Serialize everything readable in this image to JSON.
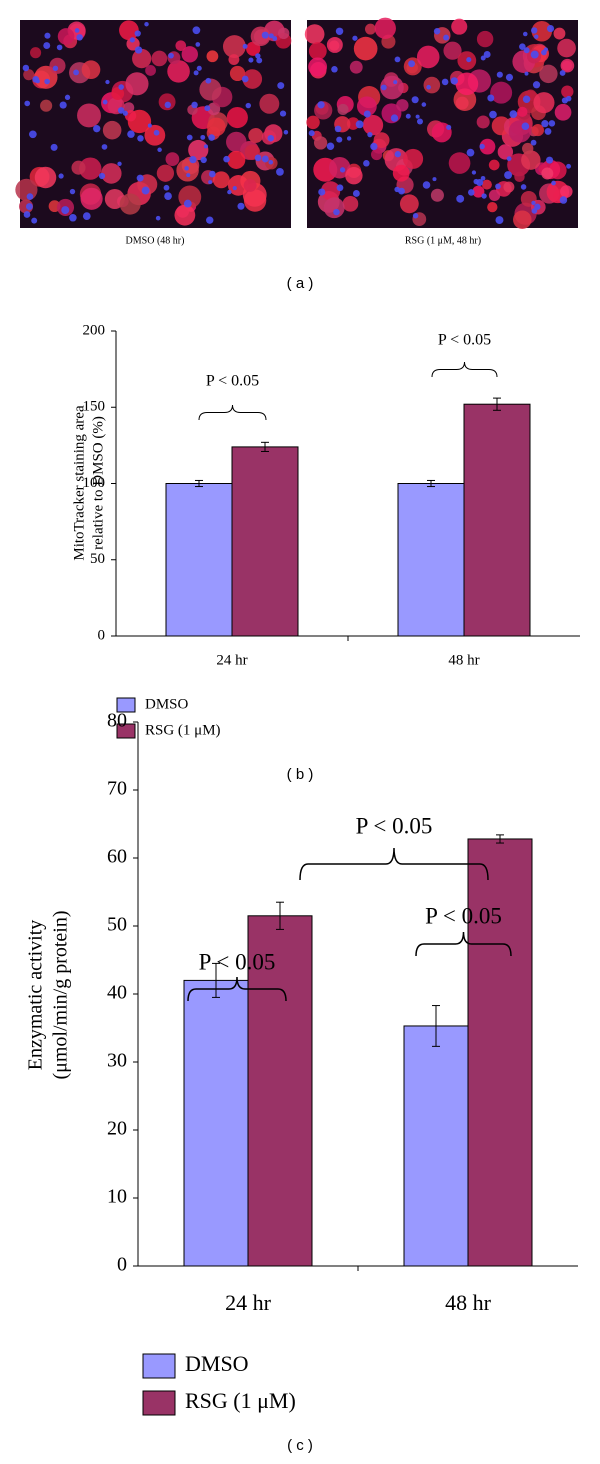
{
  "images": [
    {
      "caption": "DMSO (48 hr)"
    },
    {
      "caption": "RSG (1 μM, 48 hr)"
    }
  ],
  "panel_labels": [
    "( a )",
    "( b )",
    "( c )"
  ],
  "chart_data": [
    {
      "type": "bar",
      "ylabel": [
        "MitoTracker staining area",
        "relative to DMSO (%)"
      ],
      "categories": [
        "24 hr",
        "48 hr"
      ],
      "series": [
        {
          "name": "DMSO",
          "color": "#9999ff",
          "values": [
            100,
            100
          ],
          "errors": [
            2,
            2
          ]
        },
        {
          "name": "RSG (1 μM)",
          "color": "#993366",
          "values": [
            124,
            152
          ],
          "errors": [
            3,
            4
          ]
        }
      ],
      "ylim": [
        0,
        200
      ],
      "yticks": [
        0,
        50,
        100,
        150,
        200
      ],
      "annotations": [
        {
          "text": "P < 0.05"
        },
        {
          "text": "P < 0.05"
        }
      ]
    },
    {
      "type": "bar",
      "ylabel": [
        "Enzymatic activity",
        "(μmol/min/g protein)"
      ],
      "categories": [
        "24 hr",
        "48 hr"
      ],
      "series": [
        {
          "name": "DMSO",
          "color": "#9999ff",
          "values": [
            42,
            35.3
          ],
          "errors": [
            2.5,
            3
          ]
        },
        {
          "name": "RSG (1 μM)",
          "color": "#993366",
          "values": [
            51.5,
            62.8
          ],
          "errors": [
            2,
            0.6
          ]
        }
      ],
      "ylim": [
        0,
        80
      ],
      "yticks": [
        0,
        10,
        20,
        30,
        40,
        50,
        60,
        70,
        80
      ],
      "annotations": [
        {
          "text": "P < 0.05"
        },
        {
          "text": "P < 0.05"
        },
        {
          "text": "P < 0.05"
        }
      ]
    }
  ]
}
